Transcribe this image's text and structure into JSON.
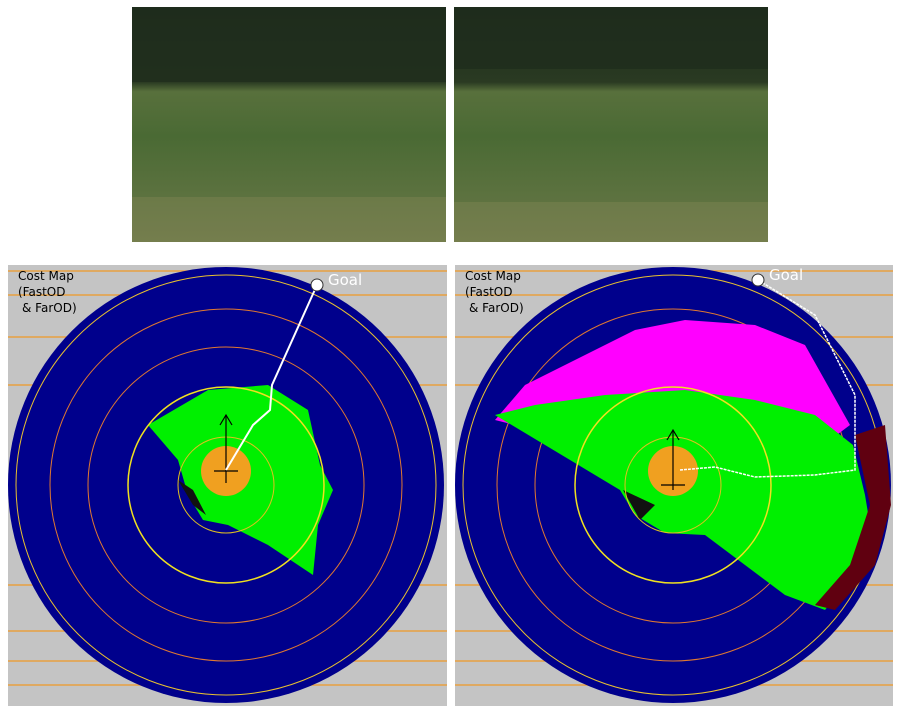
{
  "panels": [
    {
      "label": [
        "Cost Map",
        "(FastOD",
        "& FarOD)"
      ],
      "goal": "Goal"
    },
    {
      "label": [
        "Cost Map",
        "(FastOD",
        "& FarOD)"
      ],
      "goal": "Goal"
    }
  ]
}
